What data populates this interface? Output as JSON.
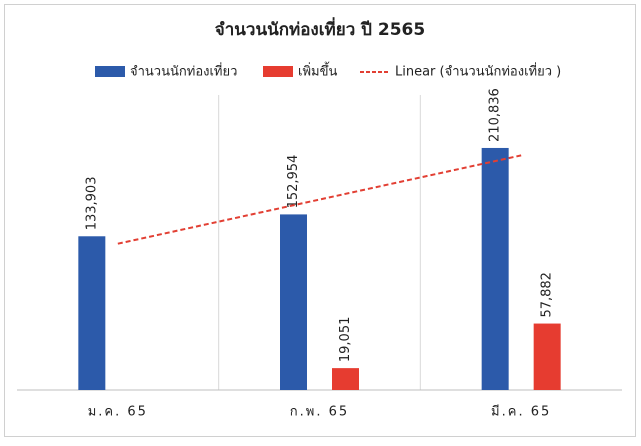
{
  "chart_data": {
    "type": "bar",
    "title": "จำนวนนักท่องเที่ยว ปี 2565",
    "categories": [
      "ม.ค. 65",
      "ก.พ. 65",
      "มี.ค. 65"
    ],
    "series": [
      {
        "name": "จำนวนนักท่องเที่ยว",
        "color": "#2c5aaa",
        "values": [
          133903,
          152954,
          210836
        ],
        "value_labels": [
          "133,903",
          "152,954",
          "210,836"
        ]
      },
      {
        "name": "เพิ่มขึ้น",
        "color": "#e63c30",
        "values": [
          null,
          19051,
          57882
        ],
        "value_labels": [
          null,
          "19,051",
          "57,882"
        ]
      }
    ],
    "trendline": {
      "name": "Linear (จำนวนนักท่องเที่ยว )",
      "fit": "linear",
      "color": "#e23f33"
    },
    "ylim": [
      0,
      250000
    ],
    "grid": "category",
    "legend": "top"
  }
}
